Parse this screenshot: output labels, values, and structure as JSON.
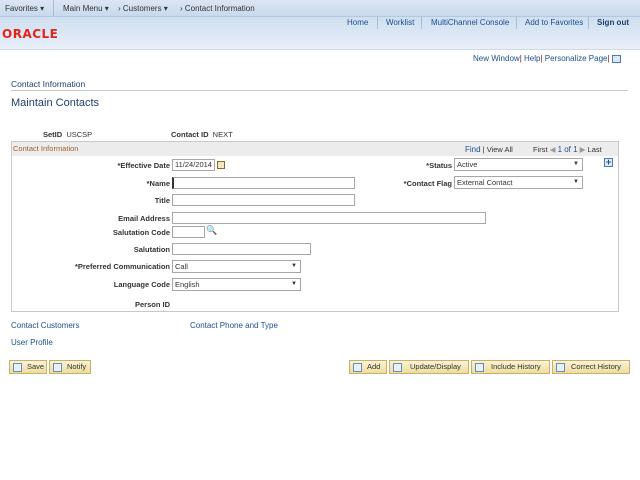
{
  "topbar": {
    "favorites": "Favorites",
    "main_menu": "Main Menu",
    "customers": "Customers",
    "current": "Contact Information"
  },
  "header": {
    "links": [
      "Home",
      "Worklist",
      "MultiChannel Console",
      "Add to Favorites",
      "Sign out"
    ],
    "logo": "ORACLE"
  },
  "utility": {
    "new_window": "New Window",
    "help": "Help",
    "personalize": "Personalize Page"
  },
  "page": {
    "breadcrumb": "Contact Information",
    "title": "Maintain Contacts",
    "setid_label": "SetID",
    "setid_value": "USCSP",
    "contactid_label": "Contact ID",
    "contactid_value": "NEXT"
  },
  "box": {
    "title": "Contact Information",
    "find": "Find",
    "view_all": "View All",
    "first": "First",
    "count": "1 of 1",
    "last": "Last"
  },
  "form": {
    "effective_date_label": "*Effective Date",
    "effective_date": "11/24/2014",
    "status_label": "*Status",
    "status": "Active",
    "name_label": "*Name",
    "name": "",
    "contact_flag_label": "*Contact Flag",
    "contact_flag": "External Contact",
    "title_label": "Title",
    "title": "",
    "email_label": "Email Address",
    "email": "",
    "salutation_code_label": "Salutation Code",
    "salutation_code": "",
    "salutation_label": "Salutation",
    "salutation": "",
    "pref_comm_label": "*Preferred Communication",
    "pref_comm": "Call",
    "language_label": "Language Code",
    "language": "English",
    "person_id_label": "Person ID"
  },
  "links": {
    "contact_customers": "Contact Customers",
    "contact_phone": "Contact Phone and Type",
    "user_profile": "User Profile"
  },
  "buttons": {
    "save": "Save",
    "notify": "Notify",
    "add": "Add",
    "update": "Update/Display",
    "include_history": "Include History",
    "correct_history": "Correct History"
  },
  "colors": {
    "link": "#1b4f8c",
    "accent": "#a0622d",
    "oracle": "#e2231a"
  }
}
